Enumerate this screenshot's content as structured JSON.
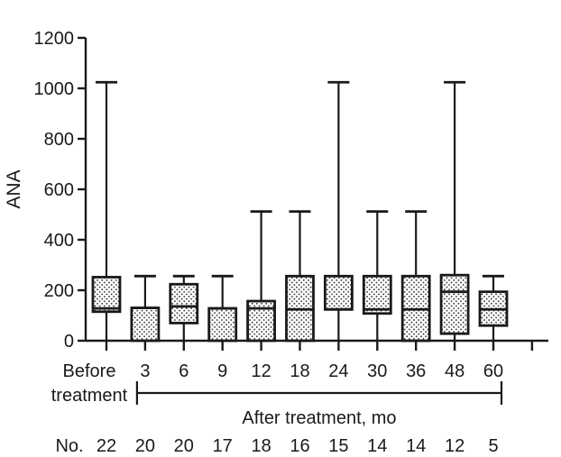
{
  "figure": {
    "background": "#ffffff",
    "ink_color": "#1a1a1a"
  },
  "chart_data": {
    "type": "boxplot",
    "title": "",
    "ylabel": "ANA",
    "ylim": [
      0,
      1200
    ],
    "yticks": [
      0,
      200,
      400,
      600,
      800,
      1000,
      1200
    ],
    "grid": false,
    "categories": [
      "Before treatment",
      "3",
      "6",
      "9",
      "12",
      "18",
      "24",
      "30",
      "36",
      "48",
      "60"
    ],
    "before_label_line1": "Before",
    "before_label_line2": "treatment",
    "x_group_bracket": {
      "label": "After treatment, mo",
      "from_category": "3",
      "to_category": "60"
    },
    "counts_row": {
      "label": "No.",
      "values": [
        22,
        20,
        20,
        17,
        18,
        16,
        15,
        14,
        14,
        12,
        5
      ]
    },
    "series": [
      {
        "label": "Before treatment",
        "whisker_low": 0,
        "q1": 115,
        "median": 128,
        "q3": 252,
        "whisker_high": 1024
      },
      {
        "label": "3",
        "whisker_low": 0,
        "q1": 0,
        "median": 130,
        "q3": 130,
        "whisker_high": 256
      },
      {
        "label": "6",
        "whisker_low": 0,
        "q1": 70,
        "median": 136,
        "q3": 224,
        "whisker_high": 256
      },
      {
        "label": "9",
        "whisker_low": 0,
        "q1": 0,
        "median": 128,
        "q3": 128,
        "whisker_high": 256
      },
      {
        "label": "12",
        "whisker_low": 0,
        "q1": 0,
        "median": 128,
        "q3": 157,
        "whisker_high": 512
      },
      {
        "label": "18",
        "whisker_low": 0,
        "q1": 0,
        "median": 124,
        "q3": 256,
        "whisker_high": 512
      },
      {
        "label": "24",
        "whisker_low": 0,
        "q1": 124,
        "median": 124,
        "q3": 256,
        "whisker_high": 1024
      },
      {
        "label": "30",
        "whisker_low": 0,
        "q1": 108,
        "median": 124,
        "q3": 256,
        "whisker_high": 512
      },
      {
        "label": "36",
        "whisker_low": 0,
        "q1": 0,
        "median": 124,
        "q3": 256,
        "whisker_high": 512
      },
      {
        "label": "48",
        "whisker_low": 0,
        "q1": 28,
        "median": 194,
        "q3": 260,
        "whisker_high": 1024
      },
      {
        "label": "60",
        "whisker_low": 0,
        "q1": 60,
        "median": 124,
        "q3": 194,
        "whisker_high": 256
      }
    ]
  }
}
